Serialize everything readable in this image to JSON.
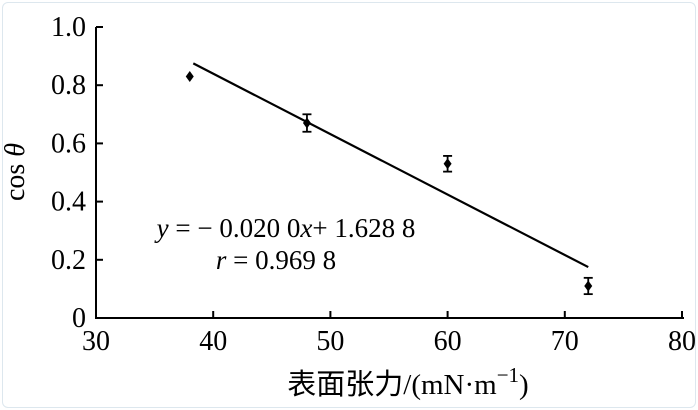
{
  "figure": {
    "background": "#ffffff",
    "frame_border_color": "#dde7ee",
    "ink_color": "#000000"
  },
  "chart_data": {
    "type": "scatter",
    "title": "",
    "xlabel_parts": [
      {
        "text": "表面张力/(mN·m",
        "italic": false,
        "sup": false
      },
      {
        "text": "−1",
        "italic": false,
        "sup": true
      },
      {
        "text": ")",
        "italic": false,
        "sup": false
      }
    ],
    "ylabel_parts": [
      {
        "text": "cos",
        "italic": false
      },
      {
        "text": " θ",
        "italic": true
      }
    ],
    "xlim": [
      30,
      80
    ],
    "ylim": [
      0,
      1.0
    ],
    "grid": false,
    "legend": false,
    "marker": "diamond",
    "x_ticks": [
      {
        "label": "30",
        "value": 30,
        "mark": false
      },
      {
        "label": "40",
        "value": 40,
        "mark": true
      },
      {
        "label": "50",
        "value": 50,
        "mark": true
      },
      {
        "label": "60",
        "value": 60,
        "mark": true
      },
      {
        "label": "70",
        "value": 70,
        "mark": true
      },
      {
        "label": "80",
        "value": 80,
        "mark": true
      }
    ],
    "y_ticks": [
      {
        "label": "0",
        "value": 0,
        "mark": false
      },
      {
        "label": "0.2",
        "value": 0.2,
        "mark": true
      },
      {
        "label": "0.4",
        "value": 0.4,
        "mark": true
      },
      {
        "label": "0.6",
        "value": 0.6,
        "mark": true
      },
      {
        "label": "0.8",
        "value": 0.8,
        "mark": true
      },
      {
        "label": "1.0",
        "value": 1.0,
        "mark": true
      }
    ],
    "points": [
      {
        "x": 38,
        "y": 0.83,
        "err": 0
      },
      {
        "x": 48,
        "y": 0.67,
        "err": 0.03
      },
      {
        "x": 60,
        "y": 0.53,
        "err": 0.027
      },
      {
        "x": 72,
        "y": 0.11,
        "err": 0.028
      }
    ],
    "fit_line": {
      "slope": -0.02,
      "intercept": 1.6288,
      "r": 0.9698,
      "x1": 38.3,
      "y1": 0.875,
      "x2": 72.0,
      "y2": 0.175
    },
    "annotation": {
      "lines": [
        [
          {
            "text": "y",
            "italic": true
          },
          {
            "text": " = − 0.020 0",
            "italic": false
          },
          {
            "text": "x",
            "italic": true
          },
          {
            "text": "+ 1.628 8",
            "italic": false
          }
        ],
        [
          {
            "text": "r",
            "italic": true
          },
          {
            "text": " = 0.969 8",
            "italic": false
          }
        ]
      ]
    }
  }
}
